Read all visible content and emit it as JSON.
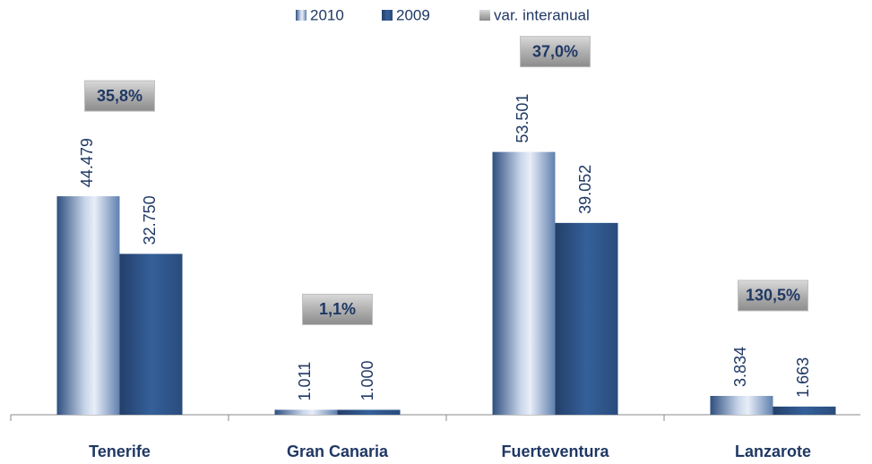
{
  "chart_data": {
    "type": "bar",
    "categories": [
      "Tenerife",
      "Gran Canaria",
      "Fuerteventura",
      "Lanzarote"
    ],
    "series": [
      {
        "name": "2010",
        "color": "#9fb4d6",
        "values": [
          44479,
          1011,
          53501,
          3834
        ],
        "value_labels": [
          "44.479",
          "1.011",
          "53.501",
          "3.834"
        ]
      },
      {
        "name": "2009",
        "color": "#2f5687",
        "values": [
          32750,
          1000,
          39052,
          1663
        ],
        "value_labels": [
          "32.750",
          "1.000",
          "39.052",
          "1.663"
        ]
      },
      {
        "name": "var. interanual",
        "color": "#a6a6a6",
        "values": [
          35.8,
          1.1,
          37.0,
          130.5
        ],
        "value_labels": [
          "35,8%",
          "1,1%",
          "37,0%",
          "130,5%"
        ]
      }
    ],
    "ylim": [
      0,
      60000
    ]
  }
}
